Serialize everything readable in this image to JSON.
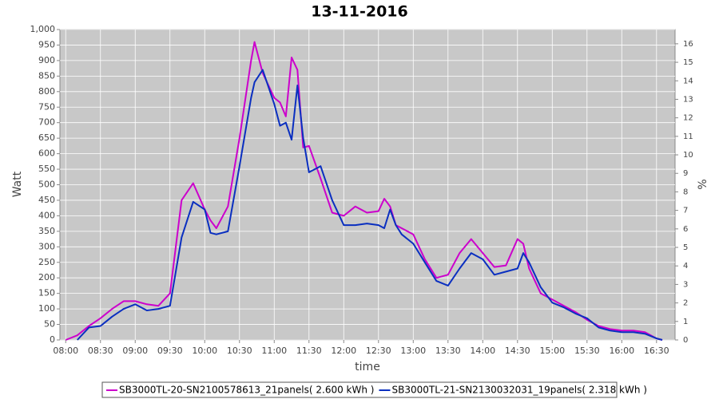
{
  "chart_data": {
    "type": "line",
    "title": "13-11-2016",
    "xlabel": "time",
    "ylabel": "Watt",
    "y2label": "%",
    "x": [
      "08:00",
      "08:10",
      "08:20",
      "08:30",
      "08:40",
      "08:50",
      "09:00",
      "09:10",
      "09:20",
      "09:30",
      "09:40",
      "09:50",
      "10:00",
      "10:05",
      "10:10",
      "10:20",
      "10:30",
      "10:40",
      "10:43",
      "10:50",
      "11:00",
      "11:05",
      "11:10",
      "11:15",
      "11:20",
      "11:25",
      "11:30",
      "11:40",
      "11:50",
      "12:00",
      "12:10",
      "12:20",
      "12:30",
      "12:35",
      "12:40",
      "12:45",
      "12:50",
      "13:00",
      "13:10",
      "13:20",
      "13:30",
      "13:40",
      "13:50",
      "14:00",
      "14:10",
      "14:20",
      "14:30",
      "14:35",
      "14:40",
      "14:50",
      "15:00",
      "15:10",
      "15:20",
      "15:30",
      "15:40",
      "15:50",
      "16:00",
      "16:10",
      "16:20",
      "16:30",
      "16:35"
    ],
    "series": [
      {
        "name": "SB3000TL-20-SN2100578613_21panels( 2.600 kWh )",
        "color": "#cc00cc",
        "values": [
          0,
          15,
          45,
          70,
          100,
          125,
          125,
          115,
          110,
          150,
          450,
          505,
          420,
          385,
          360,
          430,
          650,
          900,
          960,
          860,
          780,
          765,
          720,
          910,
          870,
          620,
          625,
          520,
          410,
          400,
          430,
          410,
          415,
          455,
          430,
          370,
          360,
          340,
          260,
          200,
          210,
          280,
          325,
          280,
          235,
          240,
          325,
          310,
          230,
          150,
          130,
          110,
          90,
          65,
          45,
          35,
          30,
          30,
          25,
          5,
          0
        ]
      },
      {
        "name": "SB3000TL-21-SN2130032031_19panels( 2.318 kWh )",
        "color": "#0a2fc0",
        "values": [
          null,
          0,
          40,
          45,
          75,
          100,
          115,
          95,
          100,
          110,
          330,
          445,
          420,
          345,
          340,
          350,
          560,
          780,
          830,
          870,
          760,
          690,
          700,
          645,
          820,
          650,
          540,
          560,
          450,
          370,
          370,
          375,
          370,
          360,
          420,
          370,
          340,
          310,
          250,
          190,
          175,
          230,
          280,
          260,
          210,
          220,
          230,
          280,
          250,
          170,
          120,
          105,
          85,
          70,
          40,
          30,
          25,
          25,
          20,
          5,
          0
        ]
      }
    ],
    "xlim": [
      "07:55",
      "16:46"
    ],
    "xticks": [
      "08:00",
      "08:30",
      "09:00",
      "09:30",
      "10:00",
      "10:30",
      "11:00",
      "11:30",
      "12:00",
      "12:30",
      "13:00",
      "13:30",
      "14:00",
      "14:30",
      "15:00",
      "15:30",
      "16:00",
      "16:30"
    ],
    "ylim": [
      0,
      1000
    ],
    "yticks": [
      0,
      50,
      100,
      150,
      200,
      250,
      300,
      350,
      400,
      450,
      500,
      550,
      600,
      650,
      700,
      750,
      800,
      850,
      900,
      950,
      {
        "value": 1000,
        "label": "1,000"
      }
    ],
    "y2lim": [
      0,
      16.77
    ],
    "y2ticks": [
      0,
      1,
      2,
      3,
      4,
      5,
      6,
      7,
      8,
      9,
      10,
      11,
      12,
      13,
      14,
      15,
      16
    ],
    "grid": true
  }
}
